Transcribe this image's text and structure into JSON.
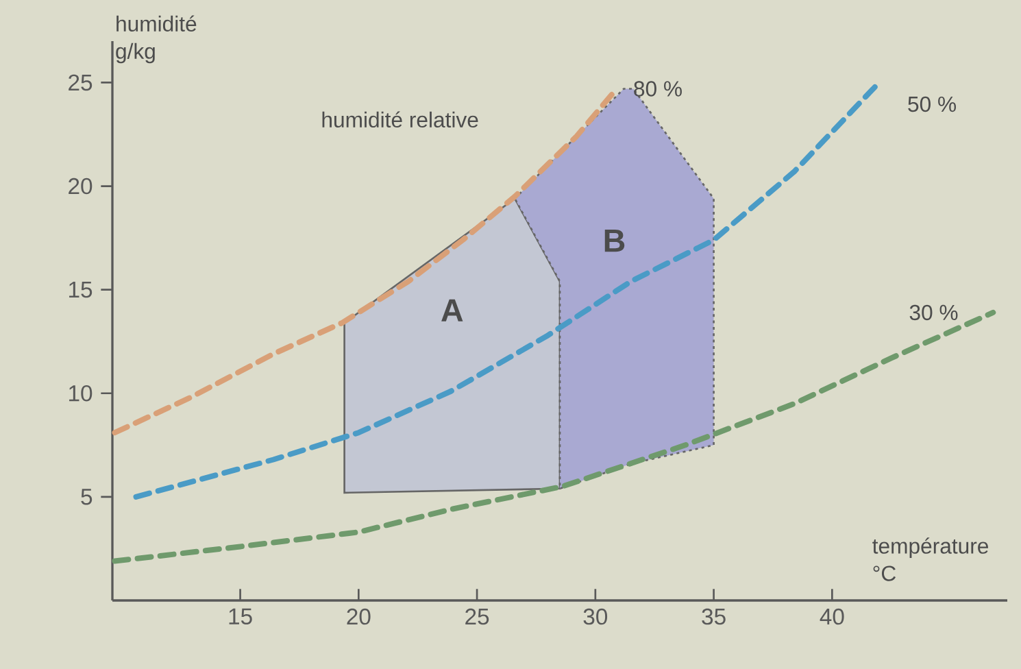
{
  "chart_data": {
    "type": "line",
    "xlabel": "température °C",
    "ylabel": "humidité g/kg",
    "annotations": [
      "humidité relative"
    ],
    "xlim": [
      9.6,
      47.4
    ],
    "ylim": [
      0,
      27
    ],
    "xticks": [
      15,
      20,
      25,
      30,
      35,
      40
    ],
    "yticks": [
      5,
      10,
      15,
      20,
      25
    ],
    "line_style": "dashed",
    "marker": "none",
    "grid": false,
    "series": [
      {
        "name": "A",
        "type": "area",
        "color": "#c3c7d3",
        "line_style": "solid",
        "x": [
          19.4,
          19.4,
          26.6,
          28.5,
          28.5
        ],
        "values": [
          5.2,
          13.4,
          19.4,
          15.4,
          5.4
        ]
      },
      {
        "name": "B",
        "type": "area",
        "color": "#a9a9d2",
        "line_style": "dotted",
        "x": [
          26.6,
          28.5,
          31.2,
          31.6,
          35,
          35,
          31.5,
          28.5,
          28.5
        ],
        "values": [
          19.4,
          21.6,
          24.7,
          24.7,
          19.4,
          7.5,
          6.6,
          5.4,
          15.4
        ]
      },
      {
        "name": "80 %",
        "color": "#d9a077",
        "x": [
          9.7,
          12.9,
          16.4,
          19.3,
          22.1,
          24.4,
          26.6,
          29.2,
          30.9
        ],
        "values": [
          8.1,
          9.8,
          11.9,
          13.4,
          15.4,
          17.4,
          19.5,
          22.4,
          24.7
        ]
      },
      {
        "name": "50 %",
        "color": "#4a9bc6",
        "x": [
          10.6,
          16.4,
          20,
          23.9,
          28,
          31.5,
          35,
          38.4,
          41.9
        ],
        "values": [
          5.0,
          6.8,
          8.1,
          10.1,
          12.8,
          15.4,
          17.4,
          20.7,
          24.9
        ]
      },
      {
        "name": "30 %",
        "color": "#6f9a6c",
        "x": [
          9.7,
          15,
          20,
          23.9,
          28.6,
          33.8,
          38.4,
          42.5,
          46.8
        ],
        "values": [
          1.9,
          2.6,
          3.3,
          4.4,
          5.5,
          7.5,
          9.5,
          11.7,
          13.9
        ]
      }
    ]
  }
}
